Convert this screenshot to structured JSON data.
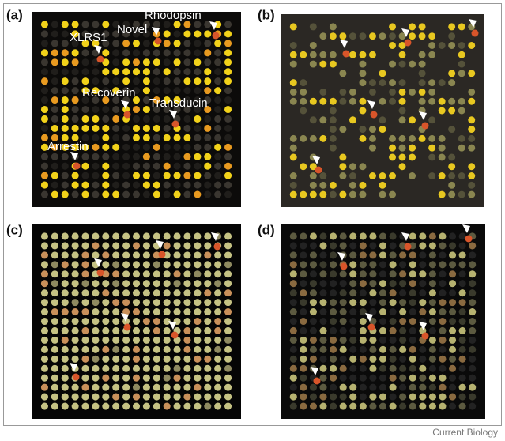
{
  "panels": [
    {
      "label": "(a)",
      "annotations": [
        "Rhodopsin",
        "Novel",
        "XLRS1",
        "Recoverin",
        "Transducin",
        "Arrestin"
      ]
    },
    {
      "label": "(b)"
    },
    {
      "label": "(c)"
    },
    {
      "label": "(d)"
    }
  ],
  "credit": "Current Biology"
}
